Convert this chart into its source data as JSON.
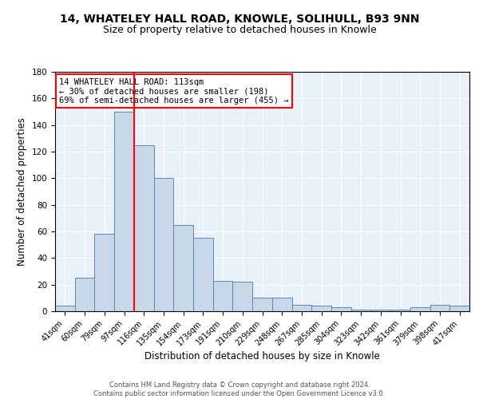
{
  "title_line1": "14, WHATELEY HALL ROAD, KNOWLE, SOLIHULL, B93 9NN",
  "title_line2": "Size of property relative to detached houses in Knowle",
  "xlabel": "Distribution of detached houses by size in Knowle",
  "ylabel": "Number of detached properties",
  "categories": [
    "41sqm",
    "60sqm",
    "79sqm",
    "97sqm",
    "116sqm",
    "135sqm",
    "154sqm",
    "173sqm",
    "191sqm",
    "210sqm",
    "229sqm",
    "248sqm",
    "267sqm",
    "285sqm",
    "304sqm",
    "323sqm",
    "342sqm",
    "361sqm",
    "379sqm",
    "398sqm",
    "417sqm"
  ],
  "values": [
    4,
    25,
    58,
    150,
    125,
    100,
    65,
    55,
    23,
    22,
    10,
    10,
    5,
    4,
    3,
    1,
    1,
    1,
    3,
    5,
    4
  ],
  "bar_color": "#c8d8e8",
  "bar_edge_color": "#5a8ab0",
  "vline_color": "red",
  "vline_x_index": 3.5,
  "annotation_text": "14 WHATELEY HALL ROAD: 113sqm\n← 30% of detached houses are smaller (198)\n69% of semi-detached houses are larger (455) →",
  "annotation_box_color": "white",
  "annotation_box_edge": "red",
  "ylim": [
    0,
    180
  ],
  "yticks": [
    0,
    20,
    40,
    60,
    80,
    100,
    120,
    140,
    160,
    180
  ],
  "background_color": "#e8f0f8",
  "footer_text": "Contains HM Land Registry data © Crown copyright and database right 2024.\nContains public sector information licensed under the Open Government Licence v3.0.",
  "title_fontsize": 10,
  "subtitle_fontsize": 9,
  "xlabel_fontsize": 8.5,
  "ylabel_fontsize": 8.5,
  "tick_fontsize": 7,
  "ytick_fontsize": 7.5,
  "annotation_fontsize": 7.5,
  "footer_fontsize": 6
}
